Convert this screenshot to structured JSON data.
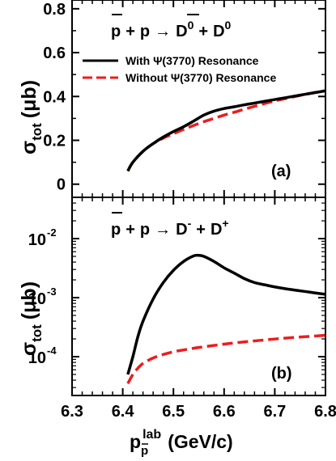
{
  "chart_data": [
    {
      "type": "line",
      "panel_label": "(a)",
      "reaction": {
        "pbar": "p",
        "p": "p",
        "arrow": "→",
        "plus": "+",
        "p1_letter": "D",
        "p1_sup": "0",
        "p2_letter": "D",
        "p2_sup": "0"
      },
      "ylabel": {
        "main": "σ",
        "sub": "tot",
        "unit": "(μb)"
      },
      "y_scale": "linear",
      "xlim": [
        6.3,
        6.8
      ],
      "ylim": [
        -0.06,
        0.84
      ],
      "yticks": [
        0,
        0.2,
        0.4,
        0.6,
        0.8
      ],
      "ytick_labels": [
        "0",
        "0.2",
        "0.4",
        "0.6",
        "0.8"
      ],
      "legend_position": "upper",
      "series": [
        {
          "name": "With Ψ(3770) Resonance",
          "color": "#000000",
          "style": "solid",
          "x": [
            6.41,
            6.42,
            6.44,
            6.46,
            6.48,
            6.5,
            6.52,
            6.54,
            6.56,
            6.58,
            6.6,
            6.62,
            6.64,
            6.66,
            6.68,
            6.7,
            6.72,
            6.74,
            6.76,
            6.78,
            6.8
          ],
          "y": [
            0.06,
            0.1,
            0.15,
            0.185,
            0.215,
            0.24,
            0.262,
            0.288,
            0.315,
            0.333,
            0.345,
            0.353,
            0.362,
            0.37,
            0.378,
            0.386,
            0.394,
            0.402,
            0.41,
            0.418,
            0.426
          ]
        },
        {
          "name": "Without Ψ(3770) Resonance",
          "color": "#ee1c1c",
          "style": "dashed",
          "x": [
            6.41,
            6.42,
            6.44,
            6.46,
            6.48,
            6.5,
            6.52,
            6.54,
            6.56,
            6.58,
            6.6,
            6.62,
            6.64,
            6.66,
            6.68,
            6.7,
            6.72,
            6.74,
            6.76,
            6.78,
            6.8
          ],
          "y": [
            0.06,
            0.1,
            0.15,
            0.185,
            0.21,
            0.23,
            0.25,
            0.268,
            0.285,
            0.3,
            0.315,
            0.328,
            0.342,
            0.355,
            0.368,
            0.38,
            0.39,
            0.4,
            0.41,
            0.418,
            0.426
          ]
        }
      ]
    },
    {
      "type": "line",
      "panel_label": "(b)",
      "reaction": {
        "pbar": "p",
        "p": "p",
        "arrow": "→",
        "plus": "+",
        "p1_letter": "D",
        "p1_sup": "-",
        "p2_letter": "D",
        "p2_sup": "+"
      },
      "ylabel": {
        "main": "σ",
        "sub": "tot",
        "unit": "(μb)"
      },
      "y_scale": "log",
      "xlim": [
        6.3,
        6.8
      ],
      "ylim": [
        2.2e-05,
        0.05
      ],
      "xlabel": {
        "main": "p",
        "sub": "p",
        "sup": "lab",
        "unit": "(GeV/c)"
      },
      "xticks": [
        6.3,
        6.4,
        6.5,
        6.6,
        6.7,
        6.8
      ],
      "xtick_labels": [
        "6.3",
        "6.4",
        "6.5",
        "6.6",
        "6.7",
        "6.8"
      ],
      "yticks": [
        0.0001,
        0.001,
        0.01
      ],
      "ytick_labels": [
        {
          "base": "10",
          "exp": "-4"
        },
        {
          "base": "10",
          "exp": "-3"
        },
        {
          "base": "10",
          "exp": "-2"
        }
      ],
      "series": [
        {
          "name": "With Ψ(3770) Resonance",
          "color": "#000000",
          "style": "solid",
          "x": [
            6.41,
            6.42,
            6.43,
            6.44,
            6.46,
            6.48,
            6.5,
            6.52,
            6.54,
            6.55,
            6.56,
            6.58,
            6.6,
            6.62,
            6.64,
            6.66,
            6.68,
            6.7,
            6.72,
            6.74,
            6.76,
            6.78,
            6.8
          ],
          "y": [
            5e-05,
            0.0001,
            0.00022,
            0.0004,
            0.00095,
            0.0018,
            0.0029,
            0.0041,
            0.0051,
            0.0052,
            0.005,
            0.0041,
            0.0032,
            0.0026,
            0.0021,
            0.0018,
            0.00165,
            0.00152,
            0.00142,
            0.00134,
            0.00127,
            0.0012,
            0.00114
          ]
        },
        {
          "name": "Without Ψ(3770) Resonance",
          "color": "#ee1c1c",
          "style": "dashed",
          "x": [
            6.41,
            6.42,
            6.43,
            6.44,
            6.46,
            6.48,
            6.5,
            6.52,
            6.54,
            6.56,
            6.58,
            6.6,
            6.62,
            6.64,
            6.66,
            6.68,
            6.7,
            6.72,
            6.74,
            6.76,
            6.78,
            6.8
          ],
          "y": [
            3.5e-05,
            5e-05,
            6.4e-05,
            7.7e-05,
            9.5e-05,
            0.000109,
            0.000121,
            0.00013,
            0.000139,
            0.000147,
            0.000155,
            0.000163,
            0.000171,
            0.000178,
            0.000185,
            0.000192,
            0.000199,
            0.000206,
            0.000212,
            0.000218,
            0.000224,
            0.00023
          ]
        }
      ]
    }
  ]
}
